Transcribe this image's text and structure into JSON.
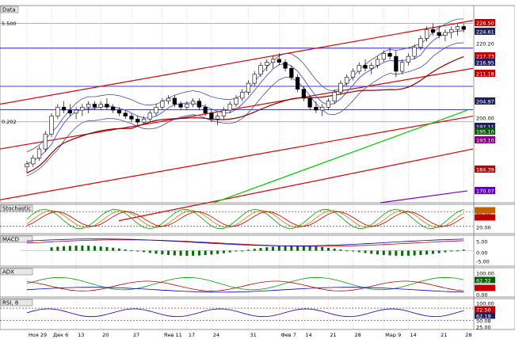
{
  "colors": {
    "up": "#ffffff",
    "down": "#000000",
    "bollinger": "#4a4a9a",
    "ma_mid": "#5a5ae0",
    "ma_long": "#8b0000",
    "ma_200": "#00cc00",
    "channel": "#e00000",
    "hline": "#0000c0",
    "pink": "#d070d0",
    "purple": "#8000c0"
  },
  "chart_data": [
    {
      "type": "candlestick",
      "panel_label": "Data",
      "y_tick_labels": [
        "224.61",
        "220.20",
        "217.73",
        "216.95",
        "211.18",
        "204.97",
        "200.00",
        "197.11",
        "195.10",
        "193.10",
        "184.39",
        "170.07"
      ],
      "highlighted_axis_labels": [
        {
          "text": "226.50",
          "bg": "#c00000"
        },
        {
          "text": "224.61",
          "bg": "#202060"
        },
        {
          "text": "217.73",
          "bg": "#c00000"
        },
        {
          "text": "216.95",
          "bg": "#202060"
        },
        {
          "text": "211.18",
          "bg": "#c00000"
        },
        {
          "text": "204.97",
          "bg": "#202060"
        },
        {
          "text": "197.11",
          "bg": "#202060"
        },
        {
          "text": "195.10",
          "bg": "#006000"
        },
        {
          "text": "193.10",
          "bg": "#800080"
        },
        {
          "text": "184.39",
          "bg": "#c00000"
        },
        {
          "text": "170.07",
          "bg": "#6000c0"
        }
      ],
      "left_labels": [
        "5.500",
        "0.202"
      ],
      "ylim": [
        166,
        232
      ],
      "candles": [
        [
          178,
          180,
          176,
          179
        ],
        [
          179,
          182,
          178,
          181
        ],
        [
          181,
          185,
          180,
          184
        ],
        [
          184,
          190,
          183,
          189
        ],
        [
          189,
          196,
          188,
          195
        ],
        [
          195,
          199,
          194,
          198
        ],
        [
          198,
          200,
          196,
          197
        ],
        [
          197,
          199,
          195,
          196
        ],
        [
          196,
          198,
          194,
          197
        ],
        [
          197,
          199,
          195,
          198
        ],
        [
          198,
          200,
          196,
          199
        ],
        [
          199,
          200,
          197,
          198
        ],
        [
          198,
          200,
          197,
          199
        ],
        [
          199,
          201,
          197,
          198
        ],
        [
          198,
          199,
          196,
          197
        ],
        [
          197,
          198,
          195,
          196
        ],
        [
          196,
          197,
          194,
          195
        ],
        [
          195,
          196,
          193,
          194
        ],
        [
          194,
          195,
          192,
          193
        ],
        [
          193,
          195,
          192,
          194
        ],
        [
          194,
          197,
          193,
          196
        ],
        [
          196,
          199,
          195,
          198
        ],
        [
          198,
          201,
          197,
          200
        ],
        [
          200,
          202,
          199,
          201
        ],
        [
          201,
          202,
          198,
          199
        ],
        [
          199,
          200,
          197,
          198
        ],
        [
          198,
          200,
          197,
          199
        ],
        [
          199,
          201,
          198,
          200
        ],
        [
          200,
          201,
          197,
          198
        ],
        [
          198,
          199,
          195,
          196
        ],
        [
          196,
          197,
          193,
          194
        ],
        [
          194,
          196,
          192,
          195
        ],
        [
          195,
          198,
          194,
          197
        ],
        [
          197,
          200,
          196,
          199
        ],
        [
          199,
          202,
          198,
          201
        ],
        [
          201,
          204,
          200,
          203
        ],
        [
          203,
          207,
          202,
          206
        ],
        [
          206,
          210,
          205,
          209
        ],
        [
          209,
          213,
          208,
          212
        ],
        [
          212,
          214,
          210,
          213
        ],
        [
          213,
          215,
          211,
          214
        ],
        [
          214,
          216,
          212,
          213
        ],
        [
          213,
          214,
          210,
          211
        ],
        [
          211,
          212,
          207,
          208
        ],
        [
          208,
          209,
          203,
          204
        ],
        [
          204,
          205,
          200,
          201
        ],
        [
          201,
          202,
          197,
          198
        ],
        [
          198,
          200,
          196,
          197
        ],
        [
          197,
          199,
          195,
          198
        ],
        [
          198,
          201,
          197,
          200
        ],
        [
          200,
          204,
          199,
          203
        ],
        [
          203,
          207,
          202,
          206
        ],
        [
          206,
          209,
          205,
          208
        ],
        [
          208,
          211,
          207,
          210
        ],
        [
          210,
          213,
          209,
          212
        ],
        [
          212,
          214,
          210,
          211
        ],
        [
          211,
          213,
          209,
          212
        ],
        [
          212,
          215,
          211,
          214
        ],
        [
          214,
          217,
          213,
          216
        ],
        [
          216,
          218,
          214,
          215
        ],
        [
          215,
          217,
          208,
          210
        ],
        [
          210,
          214,
          209,
          213
        ],
        [
          213,
          216,
          212,
          215
        ],
        [
          215,
          219,
          214,
          218
        ],
        [
          218,
          222,
          217,
          221
        ],
        [
          221,
          225,
          220,
          224
        ],
        [
          224,
          226,
          222,
          223
        ],
        [
          223,
          225,
          221,
          222
        ],
        [
          222,
          224,
          220,
          223
        ],
        [
          223,
          225,
          221,
          224
        ],
        [
          224,
          226,
          222,
          225
        ],
        [
          225,
          226,
          223,
          224
        ]
      ],
      "x_labels": [
        "Ноя 29",
        "Дек 6",
        "13",
        "20",
        "27",
        "Янв 11",
        "17",
        "24",
        "31",
        "Фев 7",
        "14",
        "21",
        "28",
        "Мар 9",
        "14",
        "21",
        "28"
      ]
    },
    {
      "type": "line",
      "panel_label": "Stochastic",
      "y_tick_labels": [
        "80.00",
        "20.00"
      ],
      "highlighted_axis_labels": [
        {
          "text": "",
          "bg": "#c06000"
        },
        {
          "text": "",
          "bg": "#c00000"
        },
        {
          "text": "",
          "bg": "#006000"
        }
      ],
      "ylim": [
        0,
        100
      ]
    },
    {
      "type": "line",
      "panel_label": "MACD",
      "y_tick_labels": [
        "5.00",
        "0.00",
        "-5.00"
      ],
      "ylim": [
        -6,
        6
      ]
    },
    {
      "type": "line",
      "panel_label": "ADX",
      "y_tick_labels": [
        "100.00",
        "62.32",
        "0.00"
      ],
      "ylim": [
        0,
        100
      ]
    },
    {
      "type": "line",
      "panel_label": "RSI, 8",
      "y_tick_labels": [
        "100.00",
        "72.50",
        "62.19",
        "50.08",
        "25.00"
      ],
      "ylim": [
        0,
        100
      ]
    }
  ]
}
